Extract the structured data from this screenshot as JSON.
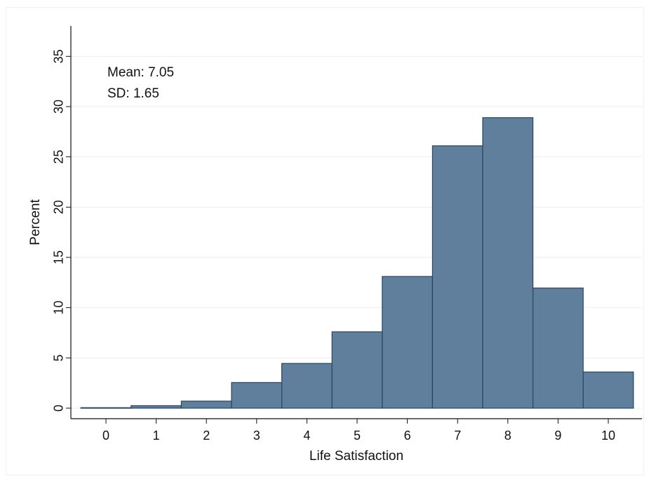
{
  "chart_data": {
    "type": "bar",
    "categories": [
      "0",
      "1",
      "2",
      "3",
      "4",
      "5",
      "6",
      "7",
      "8",
      "9",
      "10"
    ],
    "values": [
      0.05,
      0.25,
      0.7,
      2.55,
      4.45,
      7.6,
      13.1,
      26.1,
      28.9,
      11.95,
      3.6
    ],
    "title": "",
    "xlabel": "Life Satisfaction",
    "ylabel": "Percent",
    "ylim": [
      0,
      37
    ],
    "xlim": [
      -0.7,
      10.6
    ],
    "yticks": [
      "0",
      "5",
      "10",
      "15",
      "20",
      "25",
      "30",
      "35"
    ],
    "xticks": [
      "0",
      "1",
      "2",
      "3",
      "4",
      "5",
      "6",
      "7",
      "8",
      "9",
      "10"
    ],
    "grid": true,
    "bar_color": "#5f7f9c",
    "bar_edge_color": "#2a4560",
    "grid_color": "#e6eef5",
    "annotations": [
      "Mean: 7.05",
      "SD: 1.65"
    ]
  }
}
